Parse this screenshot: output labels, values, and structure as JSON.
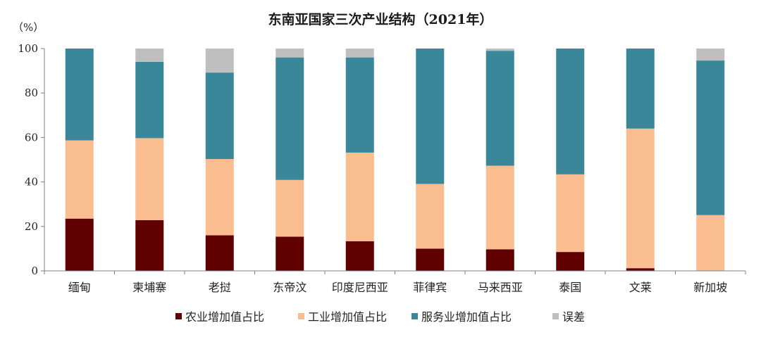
{
  "chart_data": {
    "type": "bar",
    "stacked": true,
    "title": "东南亚国家三次产业结构（2021年）",
    "ylabel": "（%）",
    "xlabel": "",
    "ylim": [
      0,
      100
    ],
    "yticks": [
      "0",
      "20",
      "40",
      "60",
      "80",
      "100"
    ],
    "grid": false,
    "legend_position": "bottom",
    "categories": [
      "缅甸",
      "柬埔寨",
      "老挝",
      "东帝汶",
      "印度尼西亚",
      "菲律宾",
      "马来西亚",
      "泰国",
      "文莱",
      "新加坡"
    ],
    "series": [
      {
        "name": "农业增加值占比",
        "color": "#600000",
        "values": [
          23.5,
          22.8,
          16.0,
          15.4,
          13.3,
          10.0,
          9.7,
          8.5,
          1.2,
          0.0
        ]
      },
      {
        "name": "工业增加值占比",
        "color": "#f9bd8f",
        "values": [
          35.2,
          36.9,
          34.3,
          25.5,
          39.9,
          29.1,
          37.6,
          34.9,
          62.8,
          25.1
        ]
      },
      {
        "name": "服务业增加值占比",
        "color": "#3a879a",
        "values": [
          41.3,
          34.3,
          38.9,
          55.1,
          42.8,
          60.9,
          51.7,
          56.6,
          36.0,
          69.5
        ]
      },
      {
        "name": "误差",
        "color": "#bfbfbf",
        "values": [
          0.0,
          6.0,
          10.8,
          4.0,
          4.0,
          0.0,
          1.0,
          0.0,
          0.0,
          5.4
        ]
      }
    ]
  }
}
